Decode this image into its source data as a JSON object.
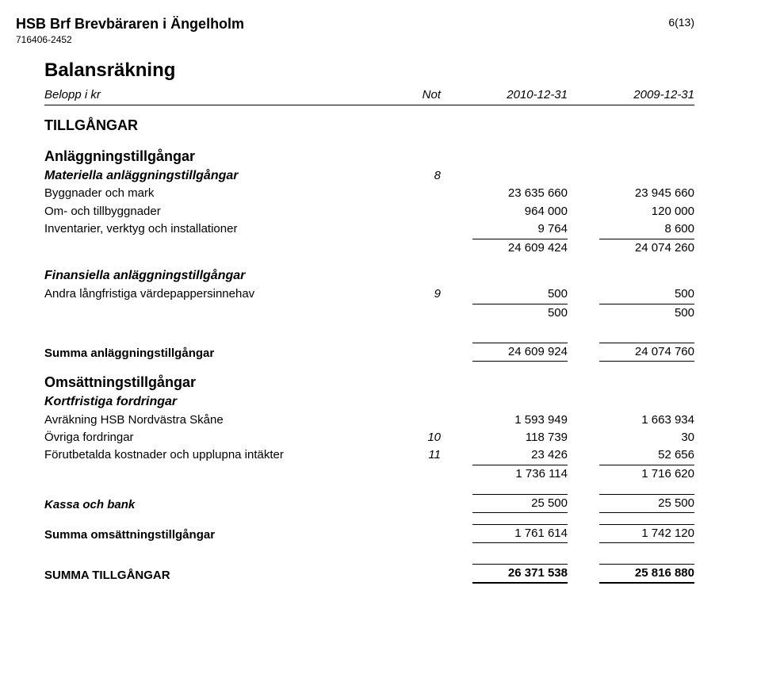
{
  "header": {
    "title": "HSB Brf Brevbäraren i Ängelholm",
    "orgno": "716406-2452",
    "pageno": "6(13)"
  },
  "doc": {
    "title": "Balansräkning",
    "table_head": {
      "label": "Belopp i kr",
      "not": "Not",
      "colA": "2010-12-31",
      "colB": "2009-12-31"
    },
    "h_tillgangar": "TILLGÅNGAR",
    "h_anlaggning": "Anläggningstillgångar",
    "h_materiella": "Materiella anläggningstillgångar",
    "mat_not": "8",
    "rows_mat": [
      {
        "label": "Byggnader och mark",
        "a": "23 635 660",
        "b": "23 945 660"
      },
      {
        "label": "Om- och tillbyggnader",
        "a": "964 000",
        "b": "120 000"
      },
      {
        "label": "Inventarier, verktyg och installationer",
        "a": "9 764",
        "b": "8 600"
      }
    ],
    "mat_sub": {
      "a": "24 609 424",
      "b": "24 074 260"
    },
    "h_finansiella": "Finansiella anläggningstillgångar",
    "rows_fin": [
      {
        "label": "Andra långfristiga värdepappersinnehav",
        "not": "9",
        "a": "500",
        "b": "500"
      }
    ],
    "fin_sub": {
      "a": "500",
      "b": "500"
    },
    "sum_anl": {
      "label": "Summa anläggningstillgångar",
      "a": "24 609 924",
      "b": "24 074 760"
    },
    "h_oms": "Omsättningstillgångar",
    "h_kortf": "Kortfristiga fordringar",
    "rows_kf": [
      {
        "label": "Avräkning HSB Nordvästra Skåne",
        "not": "",
        "a": "1 593 949",
        "b": "1 663 934"
      },
      {
        "label": "Övriga fordringar",
        "not": "10",
        "a": "118 739",
        "b": "30"
      },
      {
        "label": "Förutbetalda kostnader och upplupna intäkter",
        "not": "11",
        "a": "23 426",
        "b": "52 656"
      }
    ],
    "kf_sub": {
      "a": "1 736 114",
      "b": "1 716 620"
    },
    "kassa": {
      "label": "Kassa och bank",
      "a": "25 500",
      "b": "25 500"
    },
    "sum_oms": {
      "label": "Summa omsättningstillgångar",
      "a": "1 761 614",
      "b": "1 742 120"
    },
    "grand": {
      "label": "SUMMA TILLGÅNGAR",
      "a": "26 371 538",
      "b": "25 816 880"
    }
  }
}
